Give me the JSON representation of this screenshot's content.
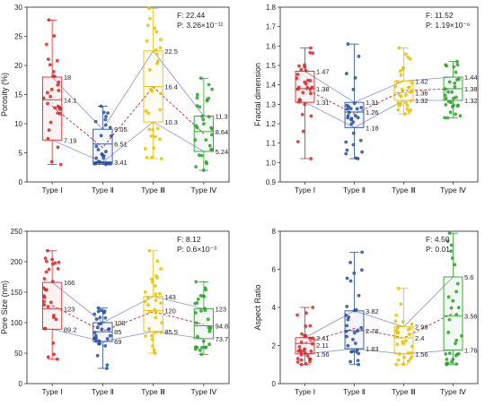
{
  "chart_data": [
    {
      "type": "box",
      "ylabel": "Porosity (%)",
      "ylim": [
        0,
        30
      ],
      "yticks": [
        0,
        5,
        10,
        15,
        20,
        25,
        30
      ],
      "categories": [
        "Type Ⅰ",
        "Type Ⅱ",
        "Type Ⅲ",
        "Type Ⅳ"
      ],
      "colors": [
        "#d62728",
        "#2a4f9c",
        "#e6c200",
        "#2ca02c"
      ],
      "stats": {
        "f": "F: 22.44",
        "p": "P: 3.26×10⁻¹¹"
      },
      "boxes": [
        {
          "q1": 7.19,
          "median": 14.1,
          "q3": 18,
          "mean": 13.0,
          "min": 3.0,
          "max": 27.8,
          "labels": [
            "18",
            "14.1",
            "7.19"
          ]
        },
        {
          "q1": 3.41,
          "median": 6.51,
          "q3": 9.05,
          "mean": 5.9,
          "min": 3.0,
          "max": 13.0,
          "labels": [
            "9.05",
            "6.51",
            "3.41"
          ]
        },
        {
          "q1": 10.3,
          "median": 16.4,
          "q3": 22.5,
          "mean": 16.3,
          "min": 4.0,
          "max": 29.8,
          "labels": [
            "22.5",
            "16.4",
            "10.3"
          ]
        },
        {
          "q1": 5.24,
          "median": 8.64,
          "q3": 11.3,
          "mean": 8.3,
          "min": 2.0,
          "max": 17.8,
          "labels": [
            "11.3",
            "8.64",
            "5.24"
          ]
        }
      ]
    },
    {
      "type": "box",
      "ylabel": "Fractal dimension",
      "ylim": [
        0.9,
        1.8
      ],
      "yticks": [
        0.9,
        1.0,
        1.1,
        1.2,
        1.3,
        1.4,
        1.5,
        1.6,
        1.7,
        1.8
      ],
      "categories": [
        "Type Ⅰ",
        "Type Ⅱ",
        "Type Ⅲ",
        "Type Ⅳ"
      ],
      "colors": [
        "#d62728",
        "#2a4f9c",
        "#e6c200",
        "#2ca02c"
      ],
      "stats": {
        "f": "F: 11.52",
        "p": "P: 1.19×10⁻⁶"
      },
      "boxes": [
        {
          "q1": 1.31,
          "median": 1.38,
          "q3": 1.47,
          "mean": 1.38,
          "min": 1.02,
          "max": 1.59,
          "labels": [
            "1.47",
            "1.38",
            "1.31"
          ]
        },
        {
          "q1": 1.18,
          "median": 1.26,
          "q3": 1.31,
          "mean": 1.25,
          "min": 1.02,
          "max": 1.61,
          "labels": [
            "1.31",
            "1.26",
            "1.18"
          ]
        },
        {
          "q1": 1.32,
          "median": 1.36,
          "q3": 1.42,
          "mean": 1.37,
          "min": 1.25,
          "max": 1.59,
          "labels": [
            "1.42",
            "1.36",
            "1.32"
          ]
        },
        {
          "q1": 1.32,
          "median": 1.38,
          "q3": 1.44,
          "mean": 1.38,
          "min": 1.23,
          "max": 1.52,
          "labels": [
            "1.44",
            "1.38",
            "1.32"
          ]
        }
      ]
    },
    {
      "type": "box",
      "ylabel": "Pore Size (nm)",
      "ylim": [
        0,
        250
      ],
      "yticks": [
        0,
        50,
        100,
        150,
        200,
        250
      ],
      "categories": [
        "Type Ⅰ",
        "Type Ⅱ",
        "Type Ⅲ",
        "Type Ⅳ"
      ],
      "colors": [
        "#d62728",
        "#2a4f9c",
        "#e6c200",
        "#2ca02c"
      ],
      "stats": {
        "f": "F: 8.12",
        "p": "P: 0.6×10⁻³"
      },
      "boxes": [
        {
          "q1": 89.2,
          "median": 123,
          "q3": 166,
          "mean": 128,
          "min": 40,
          "max": 218,
          "labels": [
            "166",
            "123",
            "89.2"
          ]
        },
        {
          "q1": 69,
          "median": 85,
          "q3": 100,
          "mean": 86,
          "min": 25,
          "max": 124,
          "labels": [
            "100",
            "85",
            "69"
          ]
        },
        {
          "q1": 85.5,
          "median": 120,
          "q3": 143,
          "mean": 118,
          "min": 50,
          "max": 218,
          "labels": [
            "143",
            "120",
            "85.5"
          ]
        },
        {
          "q1": 73.7,
          "median": 94.8,
          "q3": 123,
          "mean": 97,
          "min": 48,
          "max": 167,
          "labels": [
            "123",
            "94.8",
            "73.7"
          ]
        }
      ]
    },
    {
      "type": "box",
      "ylabel": "Aspect Ratio",
      "ylim": [
        0,
        8
      ],
      "yticks": [
        0,
        2,
        4,
        6,
        8
      ],
      "categories": [
        "Type Ⅰ",
        "Type Ⅱ",
        "Type Ⅲ",
        "Type Ⅳ"
      ],
      "colors": [
        "#d62728",
        "#2a4f9c",
        "#e6c200",
        "#2ca02c"
      ],
      "stats": {
        "f": "F: 4.50",
        "p": "P: 0.01"
      },
      "boxes": [
        {
          "q1": 1.56,
          "median": 2.11,
          "q3": 2.41,
          "mean": 2.15,
          "min": 1.0,
          "max": 4.0,
          "labels": [
            "2.41",
            "2.11",
            "1.56"
          ]
        },
        {
          "q1": 1.83,
          "median": 2.78,
          "q3": 3.82,
          "mean": 2.9,
          "min": 1.0,
          "max": 6.9,
          "labels": [
            "3.82",
            "2.78",
            "1.83"
          ]
        },
        {
          "q1": 1.56,
          "median": 2.4,
          "q3": 2.98,
          "mean": 2.4,
          "min": 1.0,
          "max": 5.0,
          "labels": [
            "2.98",
            "2.4",
            "1.56"
          ]
        },
        {
          "q1": 1.76,
          "median": 3.56,
          "q3": 5.6,
          "mean": 3.7,
          "min": 1.0,
          "max": 7.9,
          "labels": [
            "5.6",
            "3.56",
            "1.76"
          ]
        }
      ]
    }
  ]
}
